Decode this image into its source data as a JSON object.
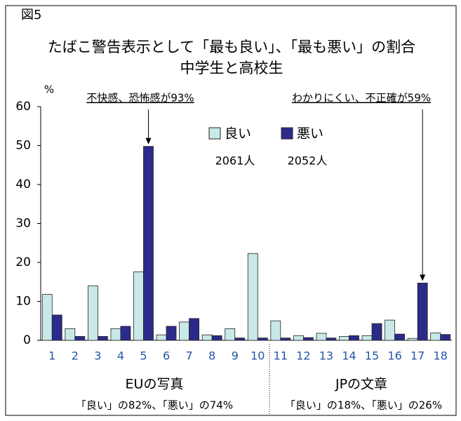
{
  "chart_data": {
    "type": "bar",
    "figure_label": "図5",
    "title": "たばこ警告表示として「最も良い」、「最も悪い」の割合",
    "subtitle": "中学生と高校生",
    "y_label": "%",
    "categories": [
      "1",
      "2",
      "3",
      "4",
      "5",
      "6",
      "7",
      "8",
      "9",
      "10",
      "11",
      "12",
      "13",
      "14",
      "15",
      "16",
      "17",
      "18"
    ],
    "series": [
      {
        "name": "良い",
        "count": "2061人",
        "color": "#c9e8e8",
        "values": [
          11.8,
          3.0,
          14.0,
          3.0,
          17.6,
          1.4,
          4.7,
          1.4,
          3.0,
          22.3,
          5.0,
          1.2,
          1.8,
          1.0,
          1.2,
          5.2,
          0.5,
          1.9
        ]
      },
      {
        "name": "悪い",
        "count": "2052人",
        "color": "#2b2b8c",
        "values": [
          6.5,
          1.0,
          1.0,
          3.6,
          49.8,
          3.6,
          5.6,
          1.2,
          0.6,
          0.6,
          0.6,
          0.7,
          0.6,
          1.2,
          4.3,
          1.6,
          14.7,
          1.5
        ]
      }
    ],
    "annotations": [
      "不快感、恐怖感が93%",
      "わかりにくい、不正確が59%"
    ],
    "groups": [
      {
        "label": "EUの写真",
        "note": "「良い」の82%、「悪い」の74%"
      },
      {
        "label": "JPの文章",
        "note": "「良い」の18%、「悪い」の26%"
      }
    ],
    "ylim": [
      0,
      60
    ],
    "yticks": [
      0,
      10,
      20,
      30,
      40,
      50,
      60
    ],
    "grid": false
  }
}
